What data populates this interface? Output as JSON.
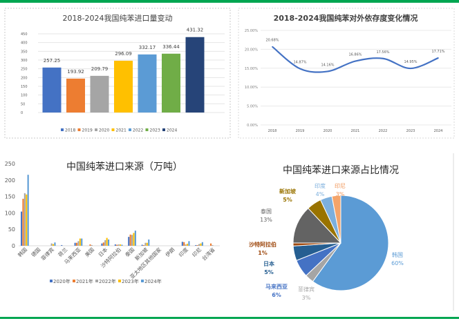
{
  "chart_data": [
    {
      "type": "bar",
      "title": "2018-2024我国纯苯进口量变动",
      "categories": [
        "2018",
        "2019",
        "2020",
        "2021",
        "2022",
        "2023",
        "2024"
      ],
      "values": [
        257.25,
        193.92,
        209.79,
        296.09,
        332.17,
        336.44,
        431.32
      ],
      "value_labels": [
        "257.25",
        "193.92",
        "209.79",
        "296.09",
        "332.17",
        "336.44",
        "431.32"
      ],
      "colors": [
        "#4472c4",
        "#ed7d31",
        "#a5a5a5",
        "#ffc000",
        "#5b9bd5",
        "#70ad47",
        "#264478"
      ],
      "ylim": [
        0,
        450
      ],
      "yticks": [
        "0",
        "50",
        "100",
        "150",
        "200",
        "250",
        "300",
        "350",
        "400",
        "450"
      ],
      "grid": true,
      "legend": "bottom"
    },
    {
      "type": "line",
      "title": "2018-2024我国纯苯对外依存度变化情况",
      "x": [
        "2018",
        "2019",
        "2020",
        "2021",
        "2022",
        "2023",
        "2024"
      ],
      "values": [
        20.68,
        14.87,
        14.16,
        16.86,
        17.56,
        14.95,
        17.71
      ],
      "value_labels": [
        "20.68%",
        "14.87%",
        "14.16%",
        "16.86%",
        "17.56%",
        "14.95%",
        "17.71%"
      ],
      "ylim": [
        0,
        25
      ],
      "yticks": [
        "0.00%",
        "5.00%",
        "10.00%",
        "15.00%",
        "20.00%",
        "25.00%"
      ],
      "color": "#4472c4",
      "grid": true
    },
    {
      "type": "bar",
      "title": "中国纯苯进口来源（万吨）",
      "categories": [
        "韩国",
        "德国",
        "菲律宾",
        "荷兰",
        "马来西亚",
        "美国",
        "日本",
        "沙特阿拉伯",
        "泰国",
        "新加坡",
        "亚太地区其他国家",
        "伊朗",
        "印度",
        "印尼",
        "台湾省"
      ],
      "series": [
        {
          "name": "2020年",
          "color": "#4472c4",
          "values": [
            104,
            0,
            0,
            2,
            9,
            0,
            7,
            4,
            27,
            3,
            0,
            0,
            12,
            2,
            0
          ]
        },
        {
          "name": "2021年",
          "color": "#ed7d31",
          "values": [
            143,
            0,
            0,
            0,
            9,
            4,
            10,
            3,
            34,
            2,
            0,
            0,
            11,
            2,
            7
          ]
        },
        {
          "name": "2022年",
          "color": "#a5a5a5",
          "values": [
            160,
            0,
            7,
            0,
            14,
            2,
            17,
            4,
            33,
            9,
            0,
            0,
            4,
            5,
            2
          ]
        },
        {
          "name": "2023年",
          "color": "#ffc000",
          "values": [
            156,
            0,
            5,
            0,
            22,
            0,
            24,
            4,
            39,
            9,
            0,
            0,
            6,
            7,
            0
          ]
        },
        {
          "name": "2024年",
          "color": "#5b9bd5",
          "values": [
            216,
            0,
            10,
            0,
            22,
            0,
            19,
            3,
            46,
            19,
            0,
            0,
            14,
            11,
            0
          ]
        }
      ],
      "ylim": [
        0,
        250
      ],
      "yticks": [
        "0",
        "50",
        "100",
        "150",
        "200",
        "250"
      ],
      "legend": "bottom"
    },
    {
      "type": "pie",
      "title": "中国纯苯进口来源占比情况",
      "slices": [
        {
          "label": "韩国",
          "value": 60,
          "pct": "60%",
          "color": "#5b9bd5",
          "text_color": "#5b9bd5"
        },
        {
          "label": "菲律宾",
          "value": 3,
          "pct": "3%",
          "color": "#a5a5a5",
          "text_color": "#a5a5a5"
        },
        {
          "label": "马来西亚",
          "value": 6,
          "pct": "6%",
          "color": "#4472c4",
          "text_color": "#4472c4"
        },
        {
          "label": "日本",
          "value": 5,
          "pct": "5%",
          "color": "#255e91",
          "text_color": "#255e91"
        },
        {
          "label": "沙特阿拉伯",
          "value": 1,
          "pct": "1%",
          "color": "#9e480e",
          "text_color": "#9e480e"
        },
        {
          "label": "泰国",
          "value": 13,
          "pct": "13%",
          "color": "#636363",
          "text_color": "#636363"
        },
        {
          "label": "新加坡",
          "value": 5,
          "pct": "5%",
          "color": "#997300",
          "text_color": "#997300"
        },
        {
          "label": "印度",
          "value": 4,
          "pct": "4%",
          "color": "#7cafdd",
          "text_color": "#7cafdd"
        },
        {
          "label": "印尼",
          "value": 3,
          "pct": "3%",
          "color": "#f4a46a",
          "text_color": "#f1975a"
        }
      ]
    }
  ]
}
